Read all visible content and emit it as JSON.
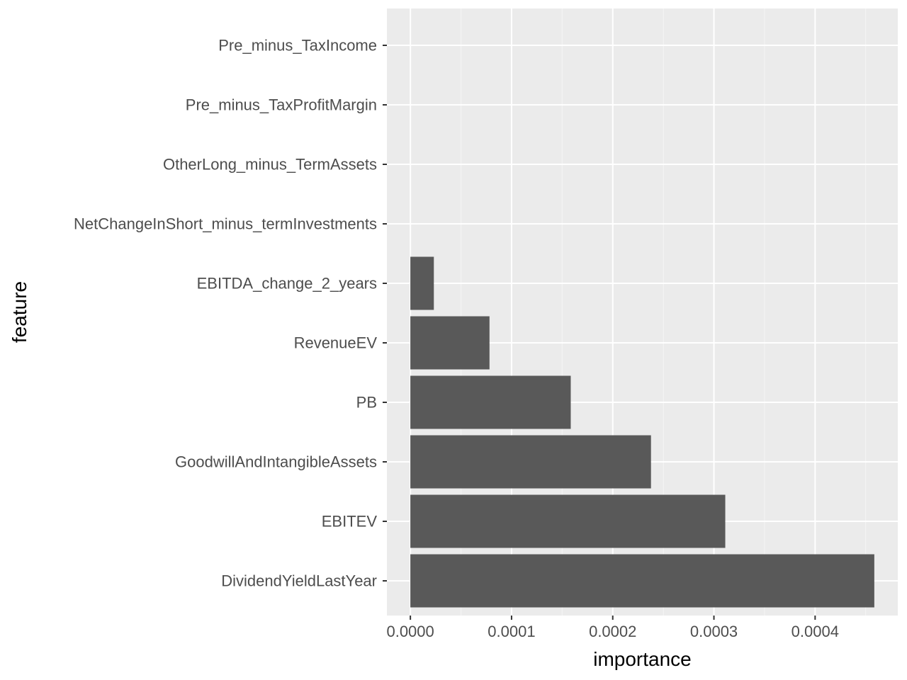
{
  "chart_data": {
    "type": "bar",
    "orientation": "horizontal",
    "title": "",
    "xlabel": "importance",
    "ylabel": "feature",
    "categories": [
      "Pre_minus_TaxIncome",
      "Pre_minus_TaxProfitMargin",
      "OtherLong_minus_TermAssets",
      "NetChangeInShort_minus_termInvestments",
      "EBITDA_change_2_years",
      "RevenueEV",
      "PB",
      "GoodwillAndIntangibleAssets",
      "EBITEV",
      "DividendYieldLastYear"
    ],
    "values": [
      0,
      0,
      0,
      0,
      2.32e-05,
      7.82e-05,
      0.0001585,
      0.0002378,
      0.0003112,
      0.0004585
    ],
    "xlim": [
      -2.32e-05,
      0.0004817
    ],
    "x_ticks": [
      0,
      0.0001,
      0.0002,
      0.0003,
      0.0004
    ],
    "x_tick_labels": [
      "0.0000",
      "0.0001",
      "0.0002",
      "0.0003",
      "0.0004"
    ],
    "grid": true,
    "legend": "none",
    "colors": {
      "panel_background": "#ebebeb",
      "grid_major": "#ffffff",
      "grid_minor": "#f5f5f5",
      "bar_fill": "#595959",
      "tick_mark": "#333333",
      "tick_label": "#4d4d4d",
      "axis_title": "#000000"
    }
  }
}
